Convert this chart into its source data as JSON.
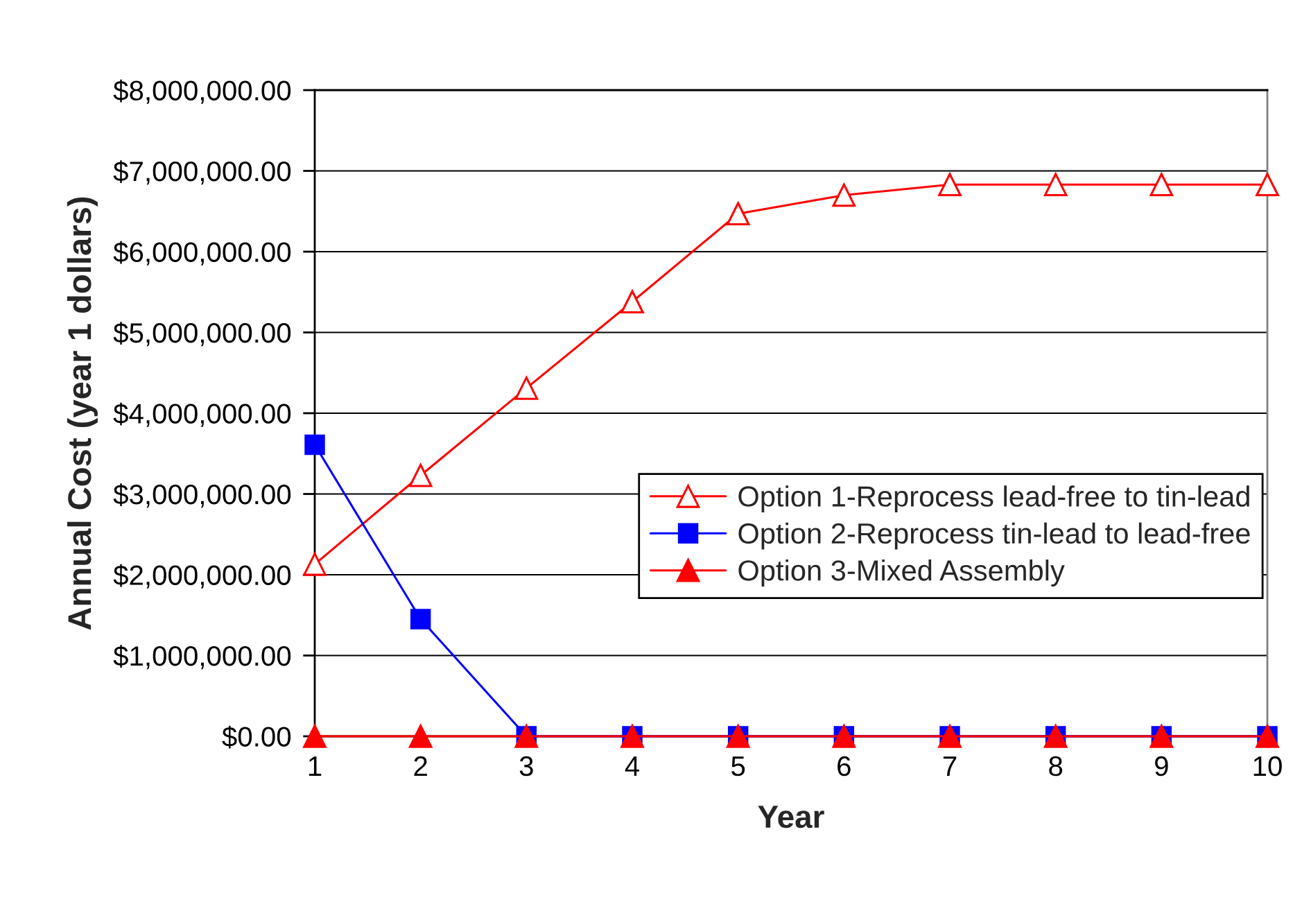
{
  "chart_data": {
    "type": "line",
    "xlabel": "Year",
    "ylabel": "Annual Cost (year 1 dollars)",
    "categories": [
      "1",
      "2",
      "3",
      "4",
      "5",
      "6",
      "7",
      "8",
      "9",
      "10"
    ],
    "series": [
      {
        "name": "Option 1-Reprocess lead-free to tin-lead",
        "color": "#ff0000",
        "marker": "triangle-open",
        "values": [
          2130000,
          3230000,
          4310000,
          5380000,
          6470000,
          6700000,
          6830000,
          6830000,
          6830000,
          6830000
        ]
      },
      {
        "name": "Option 2-Reprocess tin-lead to lead-free",
        "color": "#0000ff",
        "marker": "square",
        "values": [
          3610000,
          1450000,
          0,
          0,
          0,
          0,
          0,
          0,
          0,
          0
        ]
      },
      {
        "name": "Option 3-Mixed Assembly",
        "color": "#ff0000",
        "marker": "triangle",
        "values": [
          0,
          0,
          0,
          0,
          0,
          0,
          0,
          0,
          0,
          0
        ]
      }
    ],
    "ylim": [
      0,
      8000000
    ],
    "yticks": [
      {
        "value": 0,
        "label": "$0.00"
      },
      {
        "value": 1000000,
        "label": "$1,000,000.00"
      },
      {
        "value": 2000000,
        "label": "$2,000,000.00"
      },
      {
        "value": 3000000,
        "label": "$3,000,000.00"
      },
      {
        "value": 4000000,
        "label": "$4,000,000.00"
      },
      {
        "value": 5000000,
        "label": "$5,000,000.00"
      },
      {
        "value": 6000000,
        "label": "$6,000,000.00"
      },
      {
        "value": 7000000,
        "label": "$7,000,000.00"
      },
      {
        "value": 8000000,
        "label": "$8,000,000.00"
      }
    ],
    "grid": "y",
    "legend": "right",
    "line_style": "solid"
  }
}
